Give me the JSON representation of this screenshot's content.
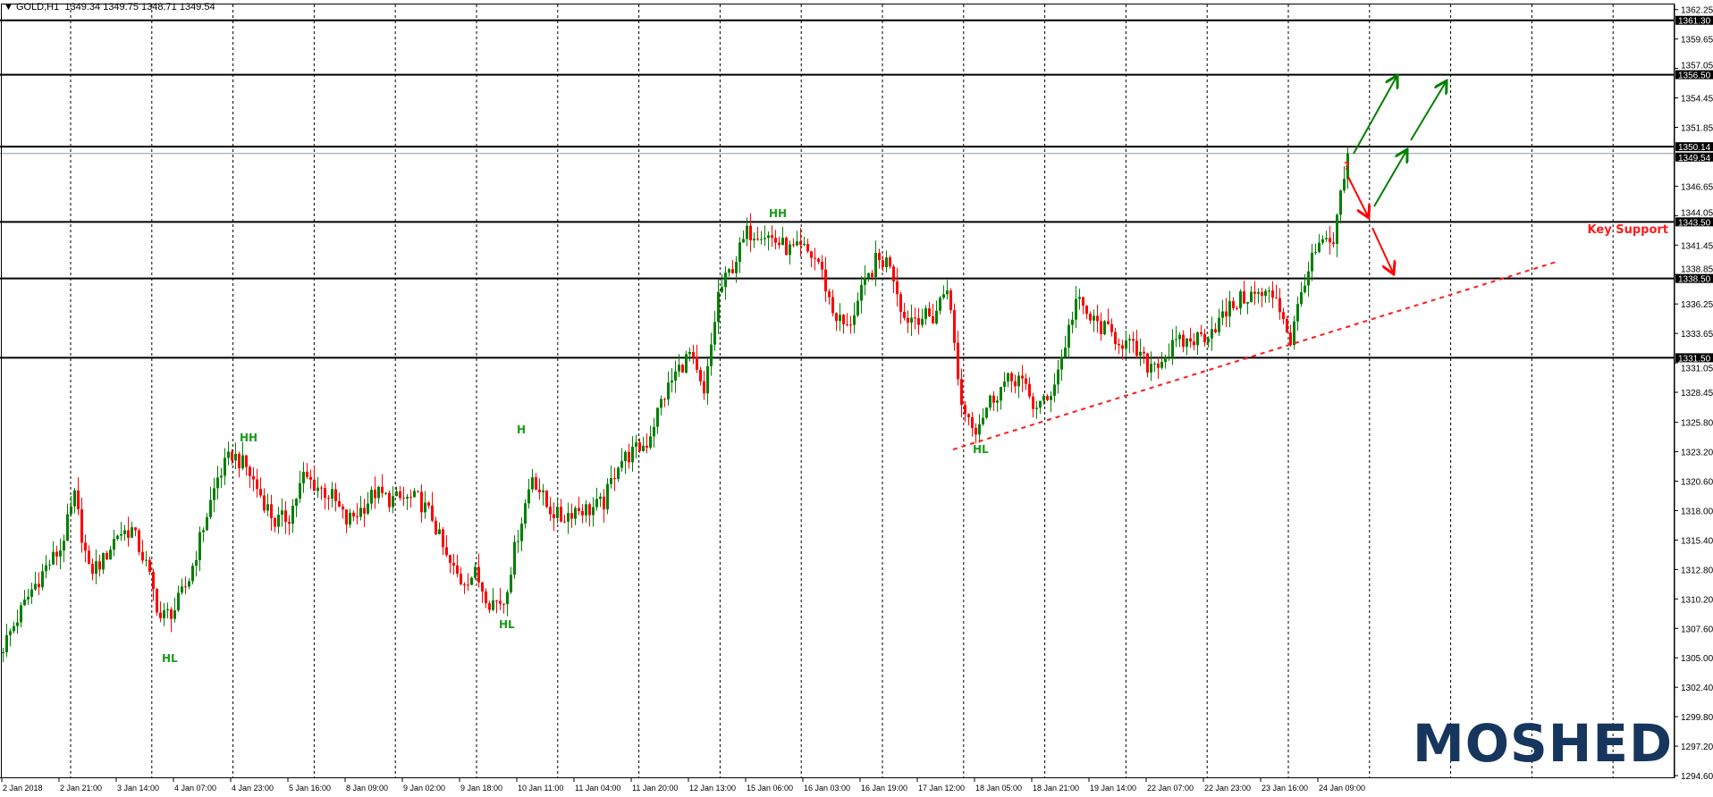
{
  "header": {
    "menu_icon": "triangle-down-icon",
    "symbol": "GOLD,H1",
    "ohlc": "1349.34 1349.75 1348.71 1349.54"
  },
  "colors": {
    "bull": "#008000",
    "bear": "#ff0000",
    "annotation_green": "#1a9a1a",
    "annotation_red": "#ff1a1a",
    "logo": "#17365d",
    "bid_line": "#8899aa"
  },
  "chart_data": {
    "type": "candlestick",
    "symbol": "GOLD",
    "timeframe": "H1",
    "ylim": [
      1294.6,
      1362.25
    ],
    "grid": true,
    "y_ticks": [
      "1362.25",
      "1359.65",
      "1357.05",
      "1354.45",
      "1351.85",
      "1346.65",
      "1344.05",
      "1341.45",
      "1338.85",
      "1336.25",
      "1333.65",
      "1331.05",
      "1328.45",
      "1325.80",
      "1323.20",
      "1320.60",
      "1318.00",
      "1315.40",
      "1312.80",
      "1310.20",
      "1307.60",
      "1305.00",
      "1302.40",
      "1299.80",
      "1297.20",
      "1294.60"
    ],
    "x_ticks": [
      "2 Jan 2018",
      "2 Jan 21:00",
      "3 Jan 14:00",
      "4 Jan 07:00",
      "4 Jan 23:00",
      "5 Jan 16:00",
      "8 Jan 09:00",
      "9 Jan 02:00",
      "9 Jan 18:00",
      "10 Jan 11:00",
      "11 Jan 04:00",
      "11 Jan 20:00",
      "12 Jan 13:00",
      "15 Jan 06:00",
      "16 Jan 03:00",
      "16 Jan 19:00",
      "17 Jan 12:00",
      "18 Jan 05:00",
      "18 Jan 21:00",
      "19 Jan 14:00",
      "22 Jan 07:00",
      "22 Jan 23:00",
      "23 Jan 16:00",
      "24 Jan 09:00"
    ],
    "close_path": [
      1306,
      1308.5,
      1311,
      1313,
      1314.6,
      1319.2,
      1312.6,
      1313.6,
      1316,
      1316.3,
      1313.2,
      1308.5,
      1309.3,
      1312,
      1316.6,
      1320.9,
      1323,
      1321.8,
      1319.4,
      1317,
      1317.5,
      1321,
      1320.1,
      1319.2,
      1317,
      1318.1,
      1319.6,
      1319,
      1319,
      1319,
      1317.4,
      1313.7,
      1311.8,
      1312.4,
      1310,
      1310,
      1316,
      1321.2,
      1318.4,
      1317.3,
      1318.2,
      1318.1,
      1318.7,
      1322.3,
      1323.1,
      1324,
      1327.6,
      1330.1,
      1331.8,
      1328,
      1337.1,
      1339.6,
      1342.5,
      1342.7,
      1341.8,
      1341,
      1341,
      1340,
      1335.6,
      1334,
      1337.2,
      1340,
      1340,
      1335,
      1335.2,
      1335,
      1338,
      1327.3,
      1325.4,
      1327.7,
      1329.2,
      1329.8,
      1327.3,
      1327.6,
      1331.5,
      1336.6,
      1334.9,
      1334,
      1333.1,
      1332.3,
      1330.8,
      1331.4,
      1332.7,
      1333,
      1333.5,
      1334.7,
      1336.2,
      1337,
      1337,
      1337,
      1333,
      1338.6,
      1341.4,
      1341.5,
      1349.54
    ],
    "last_price": 1349.54,
    "levels": [
      {
        "price": 1361.3,
        "label": "1361.30"
      },
      {
        "price": 1356.5,
        "label": "1356.50"
      },
      {
        "price": 1350.14,
        "label": "1350.14"
      },
      {
        "price": 1343.5,
        "label": "1343.50"
      },
      {
        "price": 1338.5,
        "label": "1338.50"
      },
      {
        "price": 1331.5,
        "label": "1331.50"
      }
    ],
    "bid_label": "1349.54",
    "trendline": {
      "start_price": 1323.4,
      "end_price": 1340.0,
      "style": "dashed",
      "color": "#ff1a1a"
    },
    "annotations": [
      {
        "text": "HL",
        "price": 1305.0
      },
      {
        "text": "HH",
        "price": 1324.5
      },
      {
        "text": "H",
        "price": 1325.2
      },
      {
        "text": "HL",
        "price": 1308.0
      },
      {
        "text": "HH",
        "price": 1344.3
      },
      {
        "text": "HL",
        "price": 1323.5
      }
    ],
    "key_support_label": "Key Support",
    "question_mark": "?"
  },
  "logo": {
    "text": "MOSHED"
  }
}
